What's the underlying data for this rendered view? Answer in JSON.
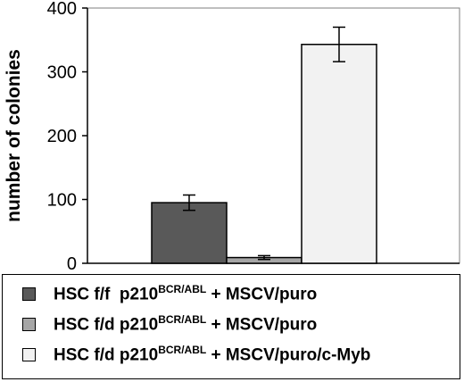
{
  "chart_data": {
    "type": "bar",
    "ylabel": "number of colonies",
    "ylim": [
      0,
      400
    ],
    "yticks": [
      0,
      100,
      200,
      300,
      400
    ],
    "grid": false,
    "legend_position": "bottom",
    "series": [
      {
        "label_parts": [
          "HSC f/f  p210",
          "BCR/ABL",
          " + MSCV/puro"
        ],
        "value": 95,
        "error": 12,
        "color": "#595959"
      },
      {
        "label_parts": [
          "HSC f/d p210",
          "BCR/ABL",
          " + MSCV/puro"
        ],
        "value": 9,
        "error": 3,
        "color": "#a6a6a6"
      },
      {
        "label_parts": [
          "HSC f/d p210",
          "BCR/ABL",
          " + MSCV/puro/c-Myb"
        ],
        "value": 343,
        "error": 27,
        "color": "#f2f2f2"
      }
    ]
  }
}
